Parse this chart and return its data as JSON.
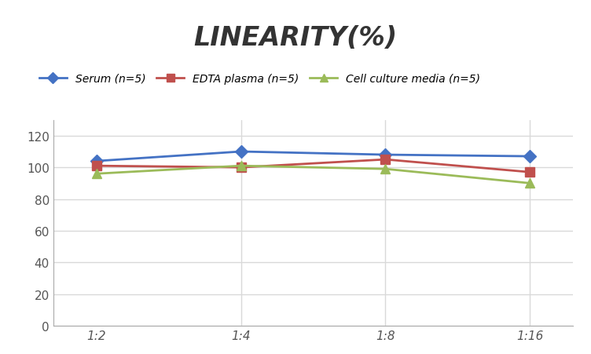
{
  "title": "LINEARITY(%)",
  "x_labels": [
    "1:2",
    "1:4",
    "1:8",
    "1:16"
  ],
  "x_positions": [
    0,
    1,
    2,
    3
  ],
  "series": [
    {
      "label": "Serum (n=5)",
      "values": [
        104,
        110,
        108,
        107
      ],
      "color": "#4472C4",
      "marker": "D",
      "linewidth": 2
    },
    {
      "label": "EDTA plasma (n=5)",
      "values": [
        101,
        100,
        105,
        97
      ],
      "color": "#C0504D",
      "marker": "s",
      "linewidth": 2
    },
    {
      "label": "Cell culture media (n=5)",
      "values": [
        96,
        101,
        99,
        90
      ],
      "color": "#9BBB59",
      "marker": "^",
      "linewidth": 2
    }
  ],
  "ylim": [
    0,
    130
  ],
  "yticks": [
    0,
    20,
    40,
    60,
    80,
    100,
    120
  ],
  "background_color": "#FFFFFF",
  "title_fontsize": 24,
  "legend_fontsize": 10,
  "tick_fontsize": 11,
  "grid_color": "#D9D9D9",
  "grid_linewidth": 1.0,
  "spine_color": "#AAAAAA"
}
